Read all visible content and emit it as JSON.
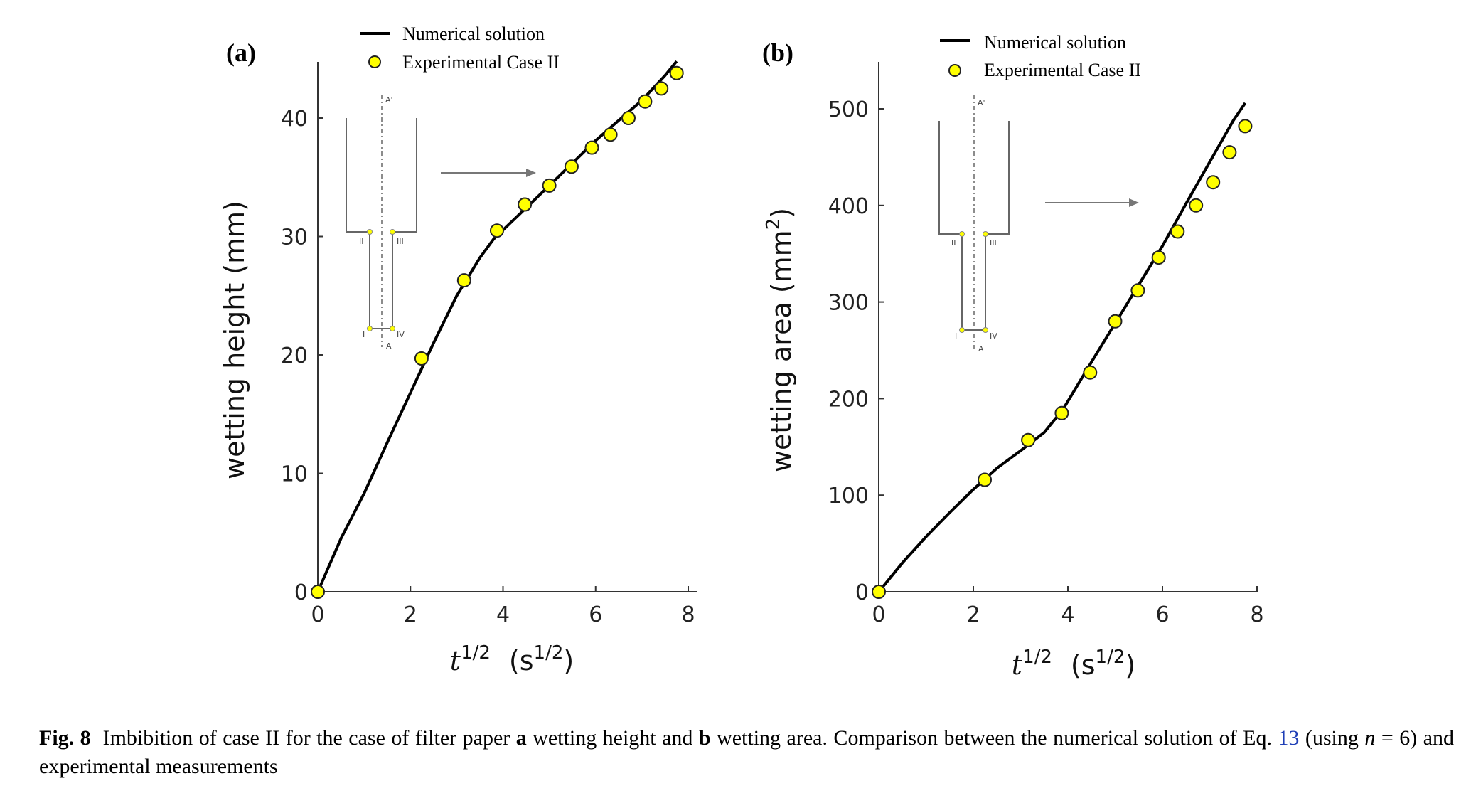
{
  "caption": {
    "fig_label": "Fig. 8",
    "part1": "Imbibition of case II for the case of filter paper ",
    "bold_a": "a",
    "part2": " wetting height and ",
    "bold_b": "b",
    "part3": " wetting area. Comparison between the numerical solution of Eq. ",
    "eq_ref": "13",
    "part4": " (using ",
    "var_n": "n",
    "part5": " = 6) and experimental measurements"
  },
  "inset": {
    "top_label": "A'",
    "bottom_label": "A",
    "corner_labels": [
      "II",
      "III",
      "I",
      "IV"
    ]
  },
  "colors": {
    "marker_fill": "#ffff00",
    "line": "#000000",
    "caption_link": "#1f3fb6"
  },
  "chart_data": [
    {
      "type": "line",
      "panel_label": "(a)",
      "xlabel_base": "t",
      "xlabel_exp": "1/2",
      "xlabel_unit": "(s",
      "xlabel_unit_exp": "1/2",
      "xlabel_close": ")",
      "ylabel": "wetting height  (mm)",
      "xlim": [
        0,
        8
      ],
      "ylim": [
        0,
        45
      ],
      "xticks": [
        0,
        2,
        4,
        6,
        8
      ],
      "yticks": [
        0,
        10,
        20,
        30,
        40
      ],
      "legend_position": "top",
      "series": [
        {
          "name": "Numerical solution",
          "kind": "line",
          "x": [
            0,
            0.5,
            1.0,
            1.5,
            2.0,
            2.5,
            3.0,
            3.5,
            3.8,
            4.2,
            4.6,
            5.0,
            5.5,
            6.0,
            6.5,
            7.0,
            7.5,
            7.75
          ],
          "y": [
            0,
            4.5,
            8.3,
            12.6,
            16.8,
            21.0,
            25.0,
            28.2,
            29.8,
            31.3,
            32.8,
            34.3,
            36.2,
            38.1,
            39.8,
            41.5,
            43.6,
            44.8
          ]
        },
        {
          "name": "Experimental Case II",
          "kind": "scatter",
          "x": [
            0,
            2.24,
            3.16,
            3.87,
            4.47,
            5.0,
            5.48,
            5.92,
            6.32,
            6.71,
            7.07,
            7.42,
            7.75
          ],
          "y": [
            0,
            19.7,
            26.3,
            30.5,
            32.7,
            34.3,
            35.9,
            37.5,
            38.6,
            40.0,
            41.4,
            42.5,
            43.8
          ]
        }
      ]
    },
    {
      "type": "line",
      "panel_label": "(b)",
      "xlabel_base": "t",
      "xlabel_exp": "1/2",
      "xlabel_unit": "(s",
      "xlabel_unit_exp": "1/2",
      "xlabel_close": ")",
      "ylabel_text": "wetting area  (mm",
      "ylabel_exp": "2",
      "ylabel_close": ")",
      "xlim": [
        0,
        8
      ],
      "ylim": [
        0,
        550
      ],
      "xticks": [
        0,
        2,
        4,
        6,
        8
      ],
      "yticks": [
        0,
        100,
        200,
        300,
        400,
        500
      ],
      "legend_position": "top",
      "series": [
        {
          "name": "Numerical solution",
          "kind": "line",
          "x": [
            0,
            0.5,
            1.0,
            1.5,
            2.0,
            2.5,
            3.0,
            3.5,
            3.9,
            4.5,
            5.0,
            5.5,
            6.0,
            6.5,
            7.0,
            7.5,
            7.75
          ],
          "y": [
            0,
            30,
            57,
            82,
            106,
            128,
            146,
            165,
            189,
            238,
            278,
            318,
            358,
            402,
            445,
            488,
            506
          ]
        },
        {
          "name": "Experimental Case II",
          "kind": "scatter",
          "x": [
            0,
            2.24,
            3.16,
            3.87,
            4.47,
            5.0,
            5.48,
            5.92,
            6.32,
            6.71,
            7.07,
            7.42,
            7.75
          ],
          "y": [
            0,
            116,
            157,
            185,
            227,
            280,
            312,
            346,
            373,
            400,
            424,
            455,
            482
          ]
        }
      ]
    }
  ]
}
